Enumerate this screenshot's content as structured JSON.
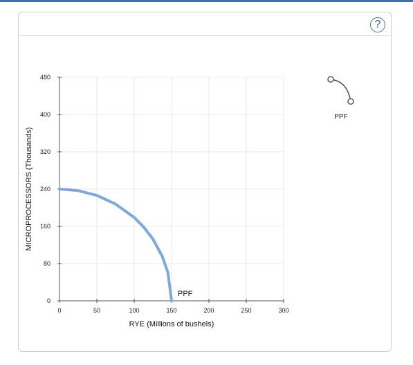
{
  "colors": {
    "top_strip": "#3f6fb0",
    "curve": "#7ea9d6",
    "grid": "#e9e9e9",
    "help_icon": "#2e5c8a"
  },
  "toolbar": {
    "help_label": "?",
    "help_icon": "question-circle-icon"
  },
  "palette": {
    "tool_label": "PPF",
    "tool_icon": "curve-tool-icon"
  },
  "chart_data": {
    "type": "line",
    "xlabel": "RYE (Millions of bushels)",
    "ylabel": "MICROPROCESSORS (Thousands)",
    "xlim": [
      0,
      300
    ],
    "ylim": [
      0,
      480
    ],
    "xticks": [
      0,
      50,
      100,
      150,
      200,
      250,
      300
    ],
    "yticks": [
      0,
      80,
      160,
      240,
      320,
      400,
      480
    ],
    "grid": true,
    "series": [
      {
        "name": "PPF",
        "x": [
          0,
          25,
          50,
          75,
          100,
          112.5,
          125,
          137.5,
          145,
          150
        ],
        "y": [
          240,
          236.6,
          226.3,
          207.8,
          178.9,
          158.7,
          132.7,
          95.5,
          61.5,
          0
        ]
      }
    ]
  }
}
